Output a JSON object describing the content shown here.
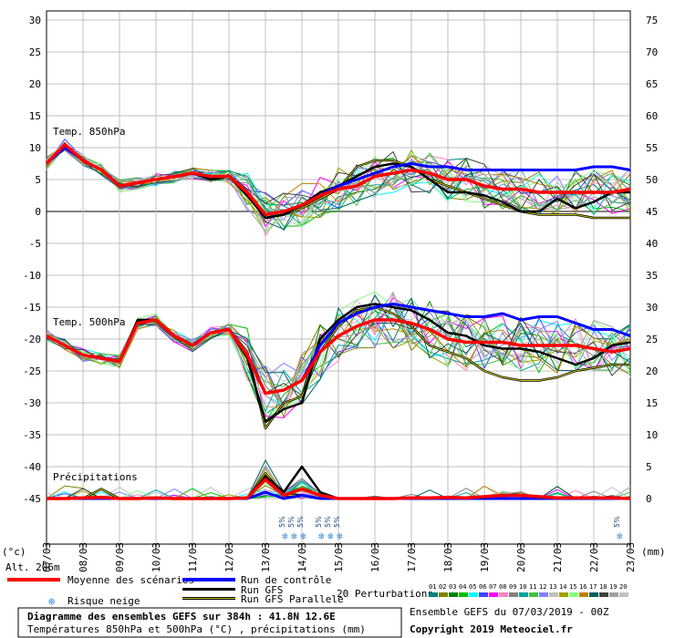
{
  "chart_data": [
    {
      "type": "line",
      "title": "Temp. 850hPa",
      "left_axis": {
        "unit": "(°c)",
        "ticks": [
          30,
          25,
          20,
          15,
          10,
          5,
          0,
          -5,
          -10,
          -15,
          -20,
          -25,
          -30,
          -35,
          -40,
          -45
        ]
      },
      "right_axis": {
        "unit": "(mm)",
        "ticks": [
          75,
          70,
          65,
          60,
          55,
          50,
          45,
          40,
          35,
          30,
          25,
          20,
          15,
          10,
          5,
          0
        ]
      },
      "x_ticks": [
        "07/03",
        "08/03",
        "09/03",
        "10/03",
        "11/03",
        "12/03",
        "13/03",
        "14/03",
        "15/03",
        "16/03",
        "17/03",
        "18/03",
        "19/03",
        "20/03",
        "21/03",
        "22/03",
        "23/03"
      ],
      "x": [
        0,
        0.5,
        1,
        1.5,
        2,
        2.5,
        3,
        3.5,
        4,
        4.5,
        5,
        5.5,
        6,
        6.5,
        7,
        7.5,
        8,
        8.5,
        9,
        9.5,
        10,
        10.5,
        11,
        11.5,
        12,
        12.5,
        13,
        13.5,
        14,
        14.5,
        15,
        15.5,
        16
      ],
      "series": [
        {
          "name": "Moyenne des scénarios",
          "values": [
            7.5,
            10.5,
            8,
            6.5,
            4,
            4.5,
            5,
            5.5,
            6,
            5.5,
            5.5,
            3,
            -0.5,
            0,
            1,
            2.5,
            3.5,
            4,
            5.5,
            6,
            6.5,
            6,
            5,
            5,
            4,
            3.5,
            3.5,
            3,
            3,
            3,
            3,
            3,
            3.5
          ]
        },
        {
          "name": "Run de contrôle",
          "values": [
            7.5,
            10,
            8,
            6.5,
            4,
            4.5,
            5,
            5.5,
            6,
            5.5,
            5.5,
            3,
            -0.5,
            0,
            1,
            2.5,
            4,
            5,
            6,
            7,
            7.5,
            7,
            7,
            6.5,
            6.5,
            6.5,
            6.5,
            6.5,
            6.5,
            6.5,
            7,
            7,
            6.5
          ]
        },
        {
          "name": "Run GFS",
          "values": [
            7.5,
            10.5,
            8,
            6.5,
            4,
            4.5,
            5,
            5.5,
            6,
            5,
            5.5,
            2.5,
            -1,
            -0.5,
            1,
            3,
            4,
            5.5,
            7,
            7.5,
            7,
            5,
            3,
            3,
            2.5,
            1.5,
            0,
            0,
            2,
            0.5,
            1.5,
            3,
            3
          ]
        },
        {
          "name": "Run GFS Parallele",
          "values": [
            7.5,
            10.5,
            8,
            6.5,
            4,
            4.5,
            5,
            5.5,
            6,
            5.5,
            5.5,
            3,
            -1,
            -0.5,
            0.5,
            2,
            3.5,
            7,
            8,
            8,
            7,
            5,
            4,
            3,
            2,
            1,
            0,
            -0.5,
            -0.5,
            -0.5,
            -1,
            -1,
            -1
          ]
        }
      ]
    },
    {
      "type": "line",
      "title": "Temp. 500hPa",
      "x": [
        0,
        0.5,
        1,
        1.5,
        2,
        2.5,
        3,
        3.5,
        4,
        4.5,
        5,
        5.5,
        6,
        6.5,
        7,
        7.5,
        8,
        8.5,
        9,
        9.5,
        10,
        10.5,
        11,
        11.5,
        12,
        12.5,
        13,
        13.5,
        14,
        14.5,
        15,
        15.5,
        16
      ],
      "series": [
        {
          "name": "Moyenne des scénarios",
          "values": [
            -19.5,
            -21,
            -22.5,
            -23,
            -23.5,
            -17.5,
            -17,
            -19.5,
            -21,
            -19,
            -18.5,
            -22.5,
            -28.5,
            -28,
            -26.5,
            -22,
            -19.5,
            -18,
            -17,
            -17,
            -17.5,
            -18.5,
            -20,
            -20.5,
            -20.5,
            -20.5,
            -21,
            -21,
            -21,
            -21,
            -21.5,
            -22,
            -21.5
          ]
        },
        {
          "name": "Run de contrôle",
          "values": [
            -19.5,
            -21,
            -22.5,
            -23,
            -23.5,
            -17.5,
            -17,
            -19.5,
            -21,
            -19,
            -18.5,
            -22.5,
            -28.5,
            -28,
            -26.5,
            -21,
            -17.5,
            -16,
            -15,
            -14.5,
            -15,
            -15.5,
            -16,
            -16.5,
            -16.5,
            -16,
            -17,
            -16.5,
            -16.5,
            -17.5,
            -18.5,
            -18.5,
            -19.5
          ]
        },
        {
          "name": "Run GFS",
          "values": [
            -19.5,
            -21,
            -22.5,
            -23,
            -23.5,
            -17,
            -17,
            -19.5,
            -21,
            -19,
            -18.5,
            -23,
            -33,
            -31,
            -30,
            -20,
            -17,
            -15,
            -14.5,
            -15,
            -15.5,
            -17,
            -19,
            -19.5,
            -21,
            -21.5,
            -21.5,
            -22,
            -23,
            -24,
            -23,
            -21,
            -20.5
          ]
        },
        {
          "name": "Run GFS Parallele",
          "values": [
            -19.5,
            -21,
            -22.5,
            -23,
            -23.5,
            -17,
            -17,
            -19.5,
            -21,
            -19,
            -18.5,
            -22,
            -34,
            -30,
            -29,
            -22,
            -18,
            -15.5,
            -15,
            -16,
            -18,
            -21,
            -22,
            -23,
            -25,
            -26,
            -26.5,
            -26.5,
            -26,
            -25,
            -24.5,
            -24,
            -24
          ]
        }
      ]
    },
    {
      "type": "line",
      "title": "Précipitations",
      "x": [
        0,
        0.5,
        1,
        1.5,
        2,
        2.5,
        3,
        3.5,
        4,
        4.5,
        5,
        5.5,
        6,
        6.5,
        7,
        7.5,
        8,
        8.5,
        9,
        9.5,
        10,
        10.5,
        11,
        11.5,
        12,
        12.5,
        13,
        13.5,
        14,
        14.5,
        15,
        15.5,
        16
      ],
      "series": [
        {
          "name": "Moyenne des scénarios",
          "values": [
            0,
            0,
            0.1,
            0.2,
            0,
            0,
            0.1,
            0,
            0,
            0,
            0,
            0.1,
            3,
            0.5,
            1.5,
            0.5,
            0,
            0,
            0,
            0,
            0.1,
            0.1,
            0.2,
            0.1,
            0.3,
            0.5,
            0.5,
            0.3,
            0.1,
            0.1,
            0.1,
            0.1,
            0
          ]
        },
        {
          "name": "Run de contrôle",
          "values": [
            0,
            0,
            0,
            0,
            0,
            0,
            0,
            0,
            0,
            0,
            0,
            0,
            1,
            0,
            0.5,
            0,
            0,
            0,
            0,
            0,
            0,
            0,
            0,
            0,
            0,
            0,
            0,
            0,
            0,
            0,
            0,
            0,
            0
          ]
        },
        {
          "name": "Run GFS",
          "values": [
            0,
            0,
            0,
            0,
            0,
            0,
            0,
            0,
            0,
            0,
            0,
            0,
            3.5,
            1,
            5,
            1,
            0,
            0,
            0,
            0,
            0,
            0,
            0,
            0,
            0,
            0,
            0,
            0,
            0,
            0,
            0,
            0,
            0
          ]
        },
        {
          "name": "Run GFS Parallele",
          "values": [
            0,
            0,
            0,
            1.5,
            0,
            0,
            0,
            0,
            0,
            0,
            0,
            0,
            4,
            0.5,
            0.5,
            0,
            0,
            0,
            0,
            0,
            0,
            0,
            0,
            0,
            0,
            0,
            0,
            0,
            0,
            0,
            0,
            0,
            0
          ]
        }
      ]
    }
  ],
  "labels": {
    "alt": "Alt. 206m",
    "snow_percent": "5%",
    "legend_mean": "Moyenne des scénarios",
    "legend_control": "Run de contrôle",
    "legend_gfs": "Run GFS",
    "legend_gfs_par": "Run GFS Parallele",
    "legend_snow": "Risque neige",
    "legend_perturb": "20 Perturbations",
    "perturb_numbers": [
      "01",
      "02",
      "03",
      "04",
      "05",
      "06",
      "07",
      "08",
      "09",
      "10",
      "11",
      "12",
      "13",
      "14",
      "15",
      "16",
      "17",
      "18",
      "19",
      "20"
    ],
    "info_title": "Diagramme des ensembles GEFS sur 384h : 41.8N 12.6E",
    "info_sub": "Températures 850hPa et 500hPa (°C) , précipitations (mm)",
    "ensemble_run": "Ensemble GEFS du 07/03/2019 - 00Z",
    "copyright": "Copyright 2019 Meteociel.fr"
  },
  "colors": {
    "mean": "#ff0000",
    "control": "#0000ff",
    "gfs": "#000000",
    "gfs_parallel": "#000000",
    "gfs_parallel_inner": "#c8c800",
    "grid": "#c0c0c0",
    "snow": "#3a8fd8",
    "perturbations": [
      "#008080",
      "#808000",
      "#008000",
      "#00c000",
      "#00ffff",
      "#4040ff",
      "#ff00ff",
      "#ff80c0",
      "#808080",
      "#00a0a0",
      "#40c040",
      "#8080ff",
      "#c0c0c0",
      "#a0a000",
      "#80ff80",
      "#c08000",
      "#006060",
      "#404040",
      "#a0a0a0",
      "#c0c0c0"
    ]
  },
  "snow_markers": [
    "13.6",
    "13.85",
    "14.1",
    "14.6",
    "14.85",
    "15.1",
    "23.0"
  ]
}
